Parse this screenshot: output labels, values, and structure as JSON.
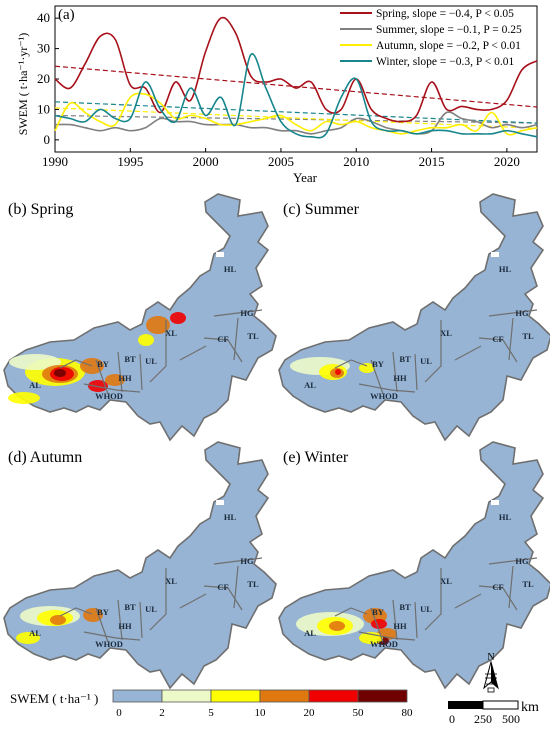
{
  "panel_a": {
    "label": "(a)"
  },
  "chart_data": {
    "type": "line",
    "ylabel": "SWEM ( t·ha⁻¹·yr⁻¹)",
    "xlabel": "Year",
    "xlim": [
      1990,
      2022
    ],
    "ylim": [
      -4,
      44
    ],
    "xticks": [
      "1990",
      "1995",
      "2000",
      "2005",
      "2010",
      "2015",
      "2020"
    ],
    "yticks": [
      "0",
      "10",
      "20",
      "30",
      "40"
    ],
    "legend_position": "top-right",
    "x": [
      1990,
      1991,
      1992,
      1993,
      1994,
      1995,
      1996,
      1997,
      1998,
      1999,
      2000,
      2001,
      2002,
      2003,
      2004,
      2005,
      2006,
      2007,
      2008,
      2009,
      2010,
      2011,
      2012,
      2013,
      2014,
      2015,
      2016,
      2017,
      2018,
      2019,
      2020,
      2021,
      2022
    ],
    "series": [
      {
        "name": "Spring, slope = −0.4, P < 0.05",
        "color": "#a8101a",
        "values": [
          20,
          17,
          25,
          34,
          33,
          18,
          17,
          9,
          19,
          13,
          29,
          40,
          35,
          21,
          19,
          20,
          17,
          19,
          10,
          10,
          20,
          10,
          7,
          6,
          8,
          19,
          10,
          11,
          10,
          10,
          13,
          23,
          26
        ],
        "trend": [
          24.2,
          10.8
        ]
      },
      {
        "name": "Summer, slope = −0.1, P = 0.25",
        "color": "#808080",
        "values": [
          5,
          5,
          4,
          3,
          4,
          3,
          4,
          7,
          6,
          6,
          5,
          5,
          5,
          4,
          4,
          3,
          3,
          2,
          3,
          4,
          7,
          6,
          4,
          3,
          2,
          3,
          9,
          7,
          6,
          4,
          5,
          4,
          5
        ],
        "trend": [
          8.0,
          5.5
        ]
      },
      {
        "name": "Autumn, slope = −0.2, P < 0.01",
        "color": "#ffee00",
        "values": [
          3,
          12,
          9,
          6,
          5,
          14,
          15,
          12,
          7,
          8,
          7,
          5,
          5,
          6,
          7,
          8,
          5,
          3,
          6,
          5,
          6,
          4,
          3,
          2,
          3,
          4,
          4,
          5,
          3,
          9,
          2,
          3,
          4
        ],
        "trend": [
          10.5,
          3.8
        ]
      },
      {
        "name": "Winter, slope = −0.3, P < 0.01",
        "color": "#17868d",
        "values": [
          8,
          7,
          6,
          10,
          7,
          7,
          19,
          10,
          6,
          17,
          8,
          14,
          5,
          28,
          17,
          6,
          2,
          1,
          2,
          14,
          20,
          6,
          3,
          3,
          2,
          3,
          3,
          2,
          2,
          2,
          3,
          2,
          1
        ],
        "trend": [
          12.5,
          5.5
        ]
      }
    ]
  },
  "maps": [
    {
      "title": "(b) Spring",
      "regions": [
        "HL",
        "HG",
        "TL",
        "CF",
        "XL",
        "UL",
        "BT",
        "BY",
        "HH",
        "WHOD",
        "AL"
      ]
    },
    {
      "title": "(c) Summer",
      "regions": [
        "HL",
        "HG",
        "TL",
        "CF",
        "XL",
        "UL",
        "BT",
        "BY",
        "HH",
        "WHOD",
        "AL"
      ]
    },
    {
      "title": "(d) Autumn",
      "regions": [
        "HL",
        "HG",
        "TL",
        "CF",
        "XL",
        "UL",
        "BT",
        "BY",
        "HH",
        "WHOD",
        "AL"
      ]
    },
    {
      "title": "(e) Winter",
      "regions": [
        "HL",
        "HG",
        "TL",
        "CF",
        "XL",
        "UL",
        "BT",
        "BY",
        "HH",
        "WHOD",
        "AL"
      ]
    }
  ],
  "colorbar": {
    "label": "SWEM ( t·ha⁻¹ )",
    "ticks": [
      "0",
      "2",
      "5",
      "10",
      "20",
      "50",
      "80"
    ],
    "colors": [
      "#97b4d4",
      "#ecfac8",
      "#ffff00",
      "#e07810",
      "#f00000",
      "#700000"
    ]
  },
  "scalebar": {
    "unit": "km",
    "ticks": [
      "0",
      "250",
      "500"
    ]
  },
  "north_arrow": {
    "label": "N",
    "icon": "north-arrow-icon"
  }
}
